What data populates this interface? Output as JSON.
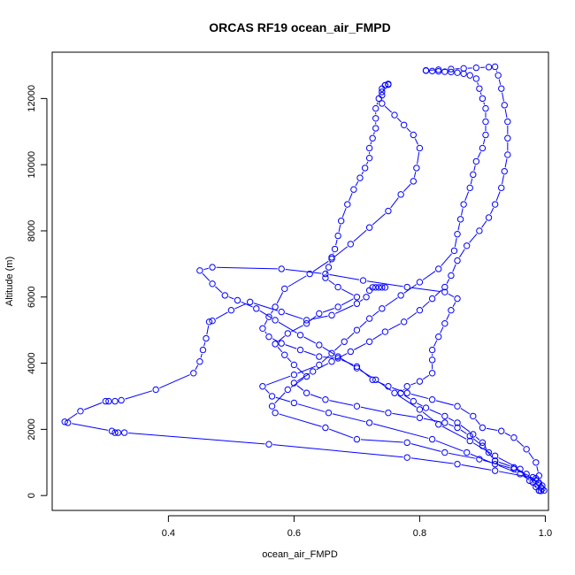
{
  "chart_data": {
    "type": "line",
    "title": "ORCAS RF19 ocean_air_FMPD",
    "xlabel": "ocean_air_FMPD",
    "ylabel": "Altitude (m)",
    "xlim": [
      0.215,
      1.005
    ],
    "ylim": [
      -450,
      13400
    ],
    "x_ticks": [
      0.4,
      0.6,
      0.8,
      1.0
    ],
    "x_tick_labels": [
      "0.4",
      "0.6",
      "0.8",
      "1.0"
    ],
    "y_ticks": [
      0,
      2000,
      4000,
      6000,
      8000,
      10000,
      12000
    ],
    "y_tick_labels": [
      "0",
      "2000",
      "4000",
      "6000",
      "8000",
      "10000",
      "12000"
    ],
    "grid": false,
    "series": [
      {
        "color": "#0000ff",
        "marker": "open-circle",
        "points": [
          [
            0.993,
            140
          ],
          [
            0.985,
            260
          ],
          [
            0.99,
            380
          ],
          [
            0.985,
            520
          ],
          [
            0.92,
            750
          ],
          [
            0.86,
            950
          ],
          [
            0.78,
            1150
          ],
          [
            0.56,
            1550
          ],
          [
            0.33,
            1900
          ],
          [
            0.32,
            1900
          ],
          [
            0.315,
            1900
          ],
          [
            0.31,
            1950
          ],
          [
            0.24,
            2200
          ],
          [
            0.235,
            2230
          ],
          [
            0.26,
            2550
          ],
          [
            0.3,
            2850
          ],
          [
            0.305,
            2850
          ],
          [
            0.315,
            2850
          ],
          [
            0.325,
            2880
          ],
          [
            0.38,
            3200
          ],
          [
            0.44,
            3700
          ],
          [
            0.45,
            4050
          ],
          [
            0.455,
            4400
          ],
          [
            0.46,
            4750
          ],
          [
            0.465,
            5250
          ],
          [
            0.47,
            5280
          ],
          [
            0.5,
            5600
          ],
          [
            0.53,
            5850
          ],
          [
            0.58,
            5550
          ],
          [
            0.62,
            5300
          ],
          [
            0.66,
            5450
          ],
          [
            0.7,
            5800
          ],
          [
            0.715,
            6000
          ],
          [
            0.72,
            6200
          ],
          [
            0.725,
            6290
          ],
          [
            0.73,
            6290
          ],
          [
            0.735,
            6290
          ],
          [
            0.74,
            6290
          ],
          [
            0.745,
            6290
          ]
        ]
      },
      {
        "color": "#0000ff",
        "marker": "open-circle",
        "points": [
          [
            0.998,
            150
          ],
          [
            0.995,
            300
          ],
          [
            0.98,
            550
          ],
          [
            0.95,
            800
          ],
          [
            0.895,
            1100
          ],
          [
            0.84,
            1300
          ],
          [
            0.78,
            1600
          ],
          [
            0.7,
            1700
          ],
          [
            0.65,
            2050
          ],
          [
            0.57,
            2500
          ],
          [
            0.565,
            2700
          ],
          [
            0.59,
            3200
          ],
          [
            0.62,
            3600
          ],
          [
            0.6,
            3950
          ],
          [
            0.585,
            4250
          ],
          [
            0.57,
            4580
          ],
          [
            0.59,
            4900
          ],
          [
            0.62,
            5200
          ],
          [
            0.64,
            5500
          ],
          [
            0.67,
            5700
          ],
          [
            0.7,
            6000
          ],
          [
            0.67,
            6300
          ],
          [
            0.65,
            6580
          ],
          [
            0.655,
            6900
          ],
          [
            0.66,
            7200
          ],
          [
            0.665,
            7450
          ],
          [
            0.67,
            7850
          ],
          [
            0.675,
            8300
          ],
          [
            0.685,
            8800
          ],
          [
            0.695,
            9250
          ],
          [
            0.705,
            9600
          ],
          [
            0.713,
            9900
          ],
          [
            0.72,
            10200
          ],
          [
            0.72,
            10500
          ],
          [
            0.725,
            10800
          ],
          [
            0.73,
            11100
          ],
          [
            0.73,
            11400
          ],
          [
            0.73,
            11700
          ],
          [
            0.735,
            12000
          ],
          [
            0.74,
            12200
          ],
          [
            0.74,
            12300
          ],
          [
            0.745,
            12400
          ],
          [
            0.75,
            12420
          ],
          [
            0.75,
            12440
          ]
        ]
      },
      {
        "color": "#0000ff",
        "marker": "open-circle",
        "points": [
          [
            0.745,
            12400
          ],
          [
            0.74,
            12100
          ],
          [
            0.74,
            11850
          ],
          [
            0.76,
            11500
          ],
          [
            0.775,
            11200
          ],
          [
            0.79,
            10900
          ],
          [
            0.8,
            10500
          ],
          [
            0.795,
            9900
          ],
          [
            0.79,
            9500
          ],
          [
            0.77,
            9100
          ],
          [
            0.75,
            8600
          ],
          [
            0.72,
            8100
          ],
          [
            0.69,
            7600
          ],
          [
            0.66,
            7150
          ],
          [
            0.625,
            6700
          ],
          [
            0.585,
            6250
          ],
          [
            0.57,
            5700
          ],
          [
            0.56,
            5400
          ],
          [
            0.55,
            5050
          ],
          [
            0.56,
            4800
          ],
          [
            0.58,
            4600
          ],
          [
            0.61,
            4400
          ],
          [
            0.64,
            4200
          ],
          [
            0.67,
            4150
          ],
          [
            0.7,
            3900
          ],
          [
            0.725,
            3500
          ],
          [
            0.75,
            3300
          ],
          [
            0.78,
            3100
          ],
          [
            0.82,
            2900
          ],
          [
            0.86,
            2700
          ],
          [
            0.885,
            2400
          ],
          [
            0.9,
            2050
          ],
          [
            0.93,
            1950
          ],
          [
            0.95,
            1750
          ],
          [
            0.97,
            1400
          ],
          [
            0.985,
            1000
          ],
          [
            0.99,
            600
          ],
          [
            0.995,
            200
          ]
        ]
      },
      {
        "color": "#0000ff",
        "marker": "open-circle",
        "points": [
          [
            0.99,
            150
          ],
          [
            0.975,
            450
          ],
          [
            0.96,
            800
          ],
          [
            0.92,
            1200
          ],
          [
            0.88,
            1650
          ],
          [
            0.83,
            2150
          ],
          [
            0.8,
            2600
          ],
          [
            0.76,
            3100
          ],
          [
            0.73,
            3500
          ],
          [
            0.7,
            3850
          ],
          [
            0.67,
            4200
          ],
          [
            0.64,
            4550
          ],
          [
            0.61,
            4850
          ],
          [
            0.57,
            5300
          ],
          [
            0.54,
            5650
          ],
          [
            0.51,
            5900
          ],
          [
            0.49,
            6050
          ],
          [
            0.47,
            6400
          ],
          [
            0.45,
            6800
          ],
          [
            0.47,
            6900
          ],
          [
            0.58,
            6850
          ],
          [
            0.65,
            6700
          ],
          [
            0.71,
            6500
          ],
          [
            0.78,
            6300
          ],
          [
            0.84,
            6150
          ],
          [
            0.86,
            5950
          ],
          [
            0.85,
            5600
          ],
          [
            0.84,
            5200
          ],
          [
            0.83,
            4800
          ],
          [
            0.82,
            4400
          ],
          [
            0.82,
            4100
          ],
          [
            0.82,
            3700
          ],
          [
            0.8,
            3450
          ],
          [
            0.78,
            3300
          ],
          [
            0.77,
            3100
          ],
          [
            0.79,
            2850
          ],
          [
            0.81,
            2650
          ],
          [
            0.84,
            2400
          ],
          [
            0.86,
            2200
          ],
          [
            0.885,
            1850
          ],
          [
            0.9,
            1600
          ],
          [
            0.91,
            1300
          ]
        ]
      },
      {
        "color": "#0000ff",
        "marker": "open-circle",
        "points": [
          [
            0.99,
            150
          ],
          [
            0.98,
            400
          ],
          [
            0.96,
            650
          ],
          [
            0.92,
            950
          ],
          [
            0.875,
            1300
          ],
          [
            0.82,
            1700
          ],
          [
            0.72,
            2200
          ],
          [
            0.655,
            2500
          ],
          [
            0.6,
            2800
          ],
          [
            0.565,
            3000
          ],
          [
            0.55,
            3300
          ],
          [
            0.6,
            3650
          ],
          [
            0.64,
            3950
          ],
          [
            0.66,
            4300
          ],
          [
            0.68,
            4650
          ],
          [
            0.7,
            5000
          ],
          [
            0.72,
            5350
          ],
          [
            0.74,
            5650
          ],
          [
            0.77,
            6050
          ],
          [
            0.8,
            6450
          ],
          [
            0.83,
            6850
          ],
          [
            0.855,
            7400
          ],
          [
            0.86,
            7900
          ],
          [
            0.865,
            8350
          ],
          [
            0.87,
            8800
          ],
          [
            0.88,
            9300
          ],
          [
            0.885,
            9700
          ],
          [
            0.89,
            10100
          ],
          [
            0.9,
            10500
          ],
          [
            0.905,
            10900
          ],
          [
            0.905,
            11300
          ],
          [
            0.905,
            11700
          ],
          [
            0.9,
            12000
          ],
          [
            0.895,
            12300
          ],
          [
            0.89,
            12600
          ],
          [
            0.88,
            12700
          ],
          [
            0.87,
            12750
          ],
          [
            0.86,
            12780
          ],
          [
            0.85,
            12800
          ],
          [
            0.84,
            12810
          ],
          [
            0.83,
            12820
          ],
          [
            0.82,
            12830
          ],
          [
            0.81,
            12840
          ]
        ]
      },
      {
        "color": "#0000ff",
        "marker": "open-circle",
        "points": [
          [
            0.81,
            12850
          ],
          [
            0.83,
            12870
          ],
          [
            0.85,
            12890
          ],
          [
            0.87,
            12910
          ],
          [
            0.89,
            12930
          ],
          [
            0.91,
            12950
          ],
          [
            0.92,
            12960
          ],
          [
            0.925,
            12700
          ],
          [
            0.93,
            12300
          ],
          [
            0.935,
            11800
          ],
          [
            0.94,
            11300
          ],
          [
            0.94,
            10800
          ],
          [
            0.94,
            10300
          ],
          [
            0.935,
            9800
          ],
          [
            0.93,
            9300
          ],
          [
            0.92,
            8800
          ],
          [
            0.91,
            8400
          ],
          [
            0.895,
            8000
          ],
          [
            0.875,
            7550
          ],
          [
            0.86,
            7100
          ],
          [
            0.85,
            6650
          ],
          [
            0.84,
            6300
          ],
          [
            0.82,
            5950
          ],
          [
            0.8,
            5600
          ],
          [
            0.775,
            5250
          ],
          [
            0.745,
            4950
          ],
          [
            0.72,
            4650
          ],
          [
            0.69,
            4350
          ],
          [
            0.66,
            4050
          ],
          [
            0.63,
            3750
          ],
          [
            0.6,
            3400
          ],
          [
            0.62,
            3100
          ],
          [
            0.65,
            2900
          ],
          [
            0.7,
            2700
          ],
          [
            0.75,
            2500
          ],
          [
            0.8,
            2350
          ],
          [
            0.84,
            2200
          ],
          [
            0.86,
            2050
          ],
          [
            0.88,
            1800
          ],
          [
            0.9,
            1500
          ],
          [
            0.92,
            1050
          ]
        ]
      },
      {
        "color": "#0000ff",
        "marker": "open-circle",
        "points": [
          [
            0.92,
            1050
          ],
          [
            0.95,
            850
          ],
          [
            0.97,
            650
          ],
          [
            0.985,
            450
          ],
          [
            0.993,
            250
          ]
        ]
      }
    ]
  }
}
